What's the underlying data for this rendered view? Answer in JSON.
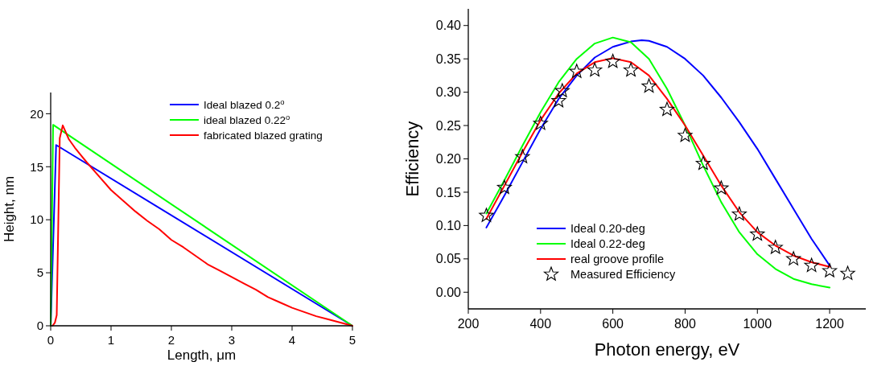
{
  "chart_data": [
    {
      "type": "line",
      "xlabel": "Length, μm",
      "ylabel": "Height, nm",
      "xlim": [
        0,
        5
      ],
      "ylim": [
        0,
        22
      ],
      "xticks": [
        0,
        1,
        2,
        3,
        4,
        5
      ],
      "yticks": [
        0,
        5,
        10,
        15,
        20
      ],
      "legend": "top right",
      "grid": false,
      "marker": "none",
      "series": [
        {
          "name": "Ideal blazed 0.2$^{o}$",
          "color": "#0000ff",
          "x": [
            0,
            0.09,
            5
          ],
          "values": [
            0,
            17.05,
            0
          ]
        },
        {
          "name": "ideal blazed 0.22$^{o}$",
          "color": "#00ff00",
          "x": [
            0,
            0.04,
            5
          ],
          "values": [
            0,
            18.95,
            0
          ]
        },
        {
          "name": "fabricated blazed grating",
          "color": "#ff0000",
          "x": [
            0.03,
            0.07,
            0.1,
            0.15,
            0.2,
            0.3,
            0.4,
            0.5,
            0.6,
            0.8,
            1,
            1.2,
            1.4,
            1.6,
            1.8,
            2,
            2.2,
            2.4,
            2.6,
            2.8,
            3,
            3.2,
            3.4,
            3.6,
            3.8,
            4,
            4.2,
            4.4,
            4.6,
            4.8,
            5
          ],
          "values": [
            0,
            0.3,
            1,
            17.7,
            18.9,
            17.6,
            16.8,
            16.1,
            15.4,
            14.1,
            12.8,
            11.8,
            10.8,
            9.9,
            9.1,
            8.1,
            7.4,
            6.6,
            5.8,
            5.2,
            4.6,
            4,
            3.4,
            2.7,
            2.2,
            1.7,
            1.3,
            0.9,
            0.6,
            0.3,
            0
          ]
        }
      ]
    },
    {
      "type": "line",
      "xlabel": "Photon energy, eV",
      "ylabel": "Efficiency",
      "xlim": [
        200,
        1300
      ],
      "ylim": [
        -0.025,
        0.425
      ],
      "xticks": [
        200,
        400,
        600,
        800,
        1000,
        1200
      ],
      "yticks": [
        {
          "value": 0,
          "label": "0.00"
        },
        {
          "value": 0.05,
          "label": "0.05"
        },
        {
          "value": 0.1,
          "label": "0.10"
        },
        {
          "value": 0.15,
          "label": "0.15"
        },
        {
          "value": 0.2,
          "label": "0.20"
        },
        {
          "value": 0.25,
          "label": "0.25"
        },
        {
          "value": 0.3,
          "label": "0.30"
        },
        {
          "value": 0.35,
          "label": "0.35"
        },
        {
          "value": 0.4,
          "label": "0.40"
        }
      ],
      "legend": "bottom left",
      "grid": false,
      "series": [
        {
          "name": "Ideal 0.20-deg",
          "color": "#0000ff",
          "marker": "none",
          "x": [
            250,
            300,
            350,
            400,
            450,
            500,
            550,
            600,
            650,
            680,
            700,
            750,
            800,
            850,
            900,
            950,
            1000,
            1050,
            1100,
            1150,
            1200
          ],
          "values": [
            0.097,
            0.145,
            0.195,
            0.245,
            0.29,
            0.325,
            0.352,
            0.368,
            0.376,
            0.378,
            0.377,
            0.368,
            0.35,
            0.325,
            0.292,
            0.255,
            0.215,
            0.17,
            0.125,
            0.08,
            0.04
          ]
        },
        {
          "name": "Ideal 0.22-deg",
          "color": "#00ff00",
          "marker": "none",
          "x": [
            250,
            300,
            350,
            400,
            450,
            500,
            550,
            600,
            650,
            700,
            750,
            800,
            850,
            900,
            950,
            1000,
            1050,
            1100,
            1150,
            1200
          ],
          "values": [
            0.118,
            0.168,
            0.22,
            0.27,
            0.315,
            0.35,
            0.373,
            0.382,
            0.375,
            0.35,
            0.305,
            0.25,
            0.19,
            0.135,
            0.09,
            0.057,
            0.035,
            0.02,
            0.012,
            0.007
          ]
        },
        {
          "name": "real groove profile",
          "color": "#ff0000",
          "marker": "none",
          "x": [
            250,
            300,
            350,
            400,
            450,
            500,
            550,
            600,
            650,
            700,
            750,
            800,
            850,
            900,
            950,
            1000,
            1050,
            1100,
            1150,
            1200
          ],
          "values": [
            0.11,
            0.16,
            0.21,
            0.258,
            0.298,
            0.328,
            0.345,
            0.351,
            0.345,
            0.325,
            0.29,
            0.25,
            0.205,
            0.16,
            0.12,
            0.09,
            0.07,
            0.055,
            0.045,
            0.038
          ]
        },
        {
          "name": "Measured Efficiency",
          "type": "scatter",
          "color": "#000000",
          "marker": "star",
          "x": [
            250,
            300,
            350,
            400,
            450,
            460,
            500,
            550,
            600,
            650,
            700,
            750,
            800,
            850,
            900,
            950,
            1000,
            1050,
            1100,
            1150,
            1200,
            1250
          ],
          "values": [
            0.115,
            0.157,
            0.203,
            0.253,
            0.287,
            0.302,
            0.331,
            0.333,
            0.346,
            0.333,
            0.309,
            0.274,
            0.235,
            0.193,
            0.156,
            0.117,
            0.087,
            0.067,
            0.05,
            0.04,
            0.032,
            0.028
          ]
        }
      ]
    }
  ]
}
